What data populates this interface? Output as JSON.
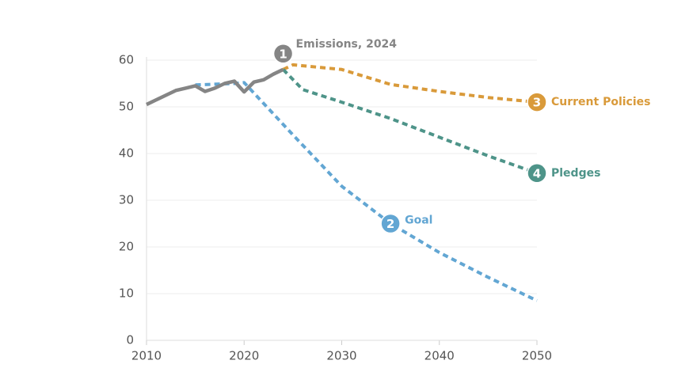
{
  "chart_data": {
    "type": "line",
    "xlim": [
      2010,
      2050
    ],
    "xticks": [
      2010,
      2020,
      2030,
      2040,
      2050
    ],
    "ylim": [
      0,
      60
    ],
    "yticks": [
      0,
      10,
      20,
      30,
      40,
      50,
      60
    ],
    "grid": true,
    "series": [
      {
        "name": "Goal",
        "badge": "2",
        "color": "#62a6d3",
        "dashed": true,
        "x": [
          2015,
          2019,
          2020,
          2025,
          2030,
          2035,
          2040,
          2045,
          2050
        ],
        "values": [
          54.7,
          55,
          55.2,
          44,
          33,
          25,
          18.8,
          13.5,
          8.5
        ]
      },
      {
        "name": "Current Policies",
        "badge": "3",
        "color": "#d99a3a",
        "dashed": true,
        "x": [
          2024,
          2025,
          2030,
          2035,
          2040,
          2045,
          2050
        ],
        "values": [
          58,
          59,
          58,
          54.8,
          53.3,
          52,
          51
        ]
      },
      {
        "name": "Pledges",
        "badge": "4",
        "color": "#4e9489",
        "dashed": true,
        "x": [
          2024,
          2026,
          2030,
          2035,
          2040,
          2045,
          2050
        ],
        "values": [
          58,
          53.7,
          51,
          47.5,
          43.5,
          39.5,
          35.8
        ]
      },
      {
        "name": "Emissions, 2024",
        "badge": "1",
        "color": "#858585",
        "dashed": false,
        "x": [
          2010,
          2011,
          2012,
          2013,
          2014,
          2015,
          2016,
          2017,
          2018,
          2019,
          2020,
          2021,
          2022,
          2023,
          2024
        ],
        "values": [
          50.5,
          51.5,
          52.5,
          53.5,
          54,
          54.5,
          53.3,
          54,
          55,
          55.5,
          53.2,
          55.3,
          55.8,
          57,
          58
        ]
      }
    ]
  }
}
